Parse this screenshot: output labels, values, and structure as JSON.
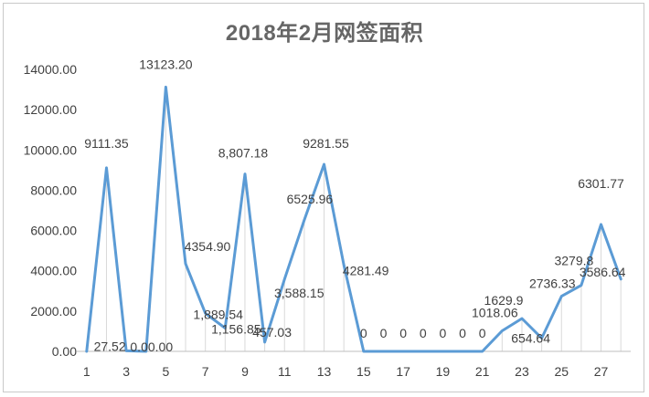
{
  "chart_data": {
    "type": "line",
    "title": "2018年2月网签面积",
    "xlabel": "",
    "ylabel": "",
    "x": [
      1,
      2,
      3,
      4,
      5,
      6,
      7,
      8,
      9,
      10,
      11,
      12,
      13,
      14,
      15,
      16,
      17,
      18,
      19,
      20,
      21,
      22,
      23,
      24,
      25,
      26,
      27,
      28
    ],
    "x_tick_labels": [
      "1",
      "3",
      "5",
      "7",
      "9",
      "11",
      "13",
      "15",
      "17",
      "19",
      "21",
      "23",
      "25",
      "27"
    ],
    "x_tick_values": [
      1,
      3,
      5,
      7,
      9,
      11,
      13,
      15,
      17,
      19,
      21,
      23,
      25,
      27
    ],
    "series": [
      {
        "values": [
          0,
          9111.35,
          27.52,
          0,
          13123.2,
          4354.9,
          1889.54,
          1156.85,
          8807.18,
          457.03,
          3588.15,
          6525.96,
          9281.55,
          4281.49,
          0,
          0,
          0,
          0,
          0,
          0,
          0,
          1018.06,
          1629.9,
          654.64,
          2736.33,
          3279.8,
          6301.77,
          3586.64
        ],
        "data_labels": [
          "",
          "9111.35",
          "27.52",
          "0.00.00",
          "13123.20",
          "4354.90",
          "1,889.54",
          "1,156.85",
          "8,807.18",
          "457.03",
          "3,588.15",
          "6525.96",
          "9281.55",
          "4281.49",
          "0",
          "0",
          "0",
          "0",
          "0",
          "0",
          "0",
          "1018.06",
          "1629.9",
          "654.64",
          "2736.33",
          "3279.8",
          "6301.77",
          "3586.64"
        ],
        "color": "#5b9bd5"
      }
    ],
    "y_tick_labels": [
      "0.00",
      "2000.00",
      "4000.00",
      "6000.00",
      "8000.00",
      "10000.00",
      "12000.00",
      "14000.00"
    ],
    "y_tick_values": [
      0,
      2000,
      4000,
      6000,
      8000,
      10000,
      12000,
      14000
    ],
    "ylim": [
      0,
      14000
    ],
    "xlim": [
      0.5,
      28.5
    ],
    "grid": "vertical drop lines",
    "legend": "none"
  }
}
